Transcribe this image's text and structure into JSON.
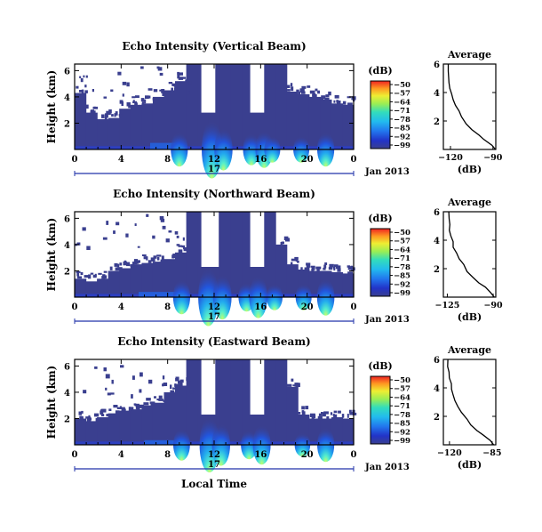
{
  "figure": {
    "date_label": "Jan 2013",
    "xlabel": "Local Time"
  },
  "chart_data": [
    {
      "type": "heatmap",
      "title": "Echo Intensity (Vertical Beam)",
      "ylabel": "Height (km)",
      "xlim": [
        0,
        24
      ],
      "ylim": [
        0,
        6.5
      ],
      "x_ticks": [
        "0",
        "4",
        "8",
        "12",
        "16",
        "20",
        "0"
      ],
      "x_tick_values": [
        0,
        4,
        8,
        12,
        16,
        20,
        24
      ],
      "y_ticks": [
        "2",
        "4",
        "6"
      ],
      "day_label": "17",
      "colorbar": {
        "unit": "(dB)",
        "ticks": [
          "-50",
          "-57",
          "-64",
          "-71",
          "-78",
          "-85",
          "-92",
          "-99"
        ],
        "range": [
          -99,
          -50
        ]
      },
      "echo_top_km": [
        4.3,
        2.8,
        2.3,
        2.4,
        3.1,
        3.4,
        3.5,
        4.0,
        4.5,
        5.2,
        6.5,
        6.5,
        6.5,
        6.5,
        6.5,
        6.5,
        6.5,
        6.5,
        6.5,
        4.4,
        4.2,
        4.0,
        3.8,
        3.5,
        3.4
      ],
      "clear_gaps": [
        [
          0,
          1.2,
          2.0,
          3.3
        ],
        [
          0,
          1.2,
          3.4,
          4.8
        ]
      ],
      "clutter_band": {
        "x": [
          6.5,
          9.0
        ],
        "top_km": 1.0
      },
      "plumes": [
        [
          9.0,
          1.3
        ],
        [
          11.8,
          2.2
        ],
        [
          12.8,
          1.6
        ],
        [
          15.2,
          1.2
        ],
        [
          16.3,
          1.4
        ],
        [
          17.0,
          1.0
        ],
        [
          19.5,
          1.0
        ],
        [
          21.6,
          1.3
        ]
      ],
      "profile": {
        "title": "Average",
        "xlabel": "(dB)",
        "xlim": [
          -125,
          -88
        ],
        "x_ticks": [
          "-120",
          "-90"
        ],
        "x_tick_values": [
          -120,
          -90
        ],
        "y_ticks": [
          "2",
          "4",
          "6"
        ],
        "ylim": [
          0,
          6
        ],
        "x": [
          -88,
          -91,
          -96,
          -100,
          -105,
          -109,
          -112,
          -114,
          -116,
          -118,
          -119,
          -120,
          -121,
          -121,
          -122,
          -122
        ],
        "y": [
          0.0,
          0.3,
          0.7,
          1.0,
          1.4,
          1.8,
          2.3,
          2.7,
          3.1,
          3.5,
          3.9,
          4.3,
          4.7,
          5.1,
          5.5,
          6.0
        ]
      }
    },
    {
      "type": "heatmap",
      "title": "Echo Intensity (Northward Beam)",
      "ylabel": "Height (km)",
      "xlim": [
        0,
        24
      ],
      "ylim": [
        0,
        6.5
      ],
      "x_ticks": [
        "0",
        "4",
        "8",
        "12",
        "16",
        "20",
        "0"
      ],
      "x_tick_values": [
        0,
        4,
        8,
        12,
        16,
        20,
        24
      ],
      "y_ticks": [
        "2",
        "4",
        "6"
      ],
      "day_label": "17",
      "colorbar": {
        "unit": "(dB)",
        "ticks": [
          "-50",
          "-57",
          "-64",
          "-71",
          "-78",
          "-85",
          "-92",
          "-99"
        ],
        "range": [
          -99,
          -50
        ]
      },
      "echo_top_km": [
        1.4,
        1.2,
        1.4,
        2.0,
        2.2,
        2.5,
        2.6,
        2.7,
        2.9,
        3.4,
        6.5,
        6.5,
        6.5,
        6.5,
        6.5,
        6.5,
        6.5,
        6.5,
        4.0,
        2.5,
        2.1,
        2.0,
        2.0,
        1.9,
        1.8
      ],
      "clear_gaps": [
        [
          0,
          0.8,
          2.5,
          3.4
        ],
        [
          0,
          0.8,
          4.2,
          5.5
        ],
        [
          0,
          0.5,
          5.5,
          6.2
        ]
      ],
      "clutter_band": {
        "x": [
          5.5,
          9.0
        ],
        "top_km": 0.8
      },
      "plumes": [
        [
          9.2,
          1.3
        ],
        [
          11.5,
          2.2
        ],
        [
          12.7,
          1.7
        ],
        [
          14.8,
          1.1
        ],
        [
          15.8,
          1.6
        ],
        [
          17.2,
          1.0
        ],
        [
          19.7,
          1.0
        ],
        [
          21.6,
          1.4
        ]
      ],
      "profile": {
        "title": "Average",
        "xlabel": "(dB)",
        "xlim": [
          -128,
          -88
        ],
        "x_ticks": [
          "-125",
          "-90"
        ],
        "x_tick_values": [
          -125,
          -90
        ],
        "y_ticks": [
          "2",
          "4",
          "6"
        ],
        "ylim": [
          0,
          6
        ],
        "x": [
          -89,
          -92,
          -96,
          -101,
          -106,
          -110,
          -113,
          -116,
          -118,
          -120,
          -121,
          -122,
          -123,
          -123,
          -124,
          -124
        ],
        "y": [
          0.0,
          0.3,
          0.7,
          1.0,
          1.4,
          1.8,
          2.3,
          2.7,
          3.1,
          3.5,
          3.9,
          4.3,
          4.7,
          5.1,
          5.5,
          6.0
        ]
      }
    },
    {
      "type": "heatmap",
      "title": "Echo Intensity (Eastward Beam)",
      "ylabel": "Height (km)",
      "xlim": [
        0,
        24
      ],
      "ylim": [
        0,
        6.5
      ],
      "x_ticks": [
        "0",
        "4",
        "8",
        "12",
        "16",
        "20",
        "0"
      ],
      "x_tick_values": [
        0,
        4,
        8,
        12,
        16,
        20,
        24
      ],
      "y_ticks": [
        "2",
        "4",
        "6"
      ],
      "day_label": "17",
      "colorbar": {
        "unit": "(dB)",
        "ticks": [
          "-50",
          "-57",
          "-64",
          "-71",
          "-78",
          "-85",
          "-92",
          "-99"
        ],
        "range": [
          -99,
          -50
        ]
      },
      "echo_top_km": [
        2.0,
        1.8,
        2.1,
        2.4,
        2.6,
        2.7,
        3.0,
        3.2,
        4.0,
        4.5,
        6.5,
        6.5,
        6.5,
        6.5,
        6.5,
        6.5,
        6.5,
        6.5,
        6.5,
        4.4,
        2.3,
        2.0,
        2.0,
        2.1,
        2.0
      ],
      "clear_gaps": [
        [
          0,
          0.5,
          3.6,
          5.0
        ],
        [
          0,
          0.7,
          5.6,
          6.4
        ],
        [
          0,
          0.5,
          3.0,
          3.3
        ]
      ],
      "clutter_band": {
        "x": [
          6.0,
          9.0
        ],
        "top_km": 0.7
      },
      "plumes": [
        [
          9.2,
          1.2
        ],
        [
          11.6,
          2.1
        ],
        [
          12.6,
          1.6
        ],
        [
          15.0,
          1.1
        ],
        [
          16.1,
          1.5
        ],
        [
          19.6,
          0.9
        ],
        [
          21.6,
          1.3
        ]
      ],
      "profile": {
        "title": "Average",
        "xlabel": "(dB)",
        "xlim": [
          -125,
          -82
        ],
        "x_ticks": [
          "-120",
          "-85"
        ],
        "x_tick_values": [
          -120,
          -85
        ],
        "y_ticks": [
          "2",
          "4",
          "6"
        ],
        "ylim": [
          0,
          6
        ],
        "x": [
          -84,
          -87,
          -92,
          -97,
          -102,
          -106,
          -110,
          -113,
          -115,
          -117,
          -118,
          -119,
          -120,
          -120,
          -121,
          -121
        ],
        "y": [
          0.0,
          0.3,
          0.7,
          1.0,
          1.4,
          1.8,
          2.3,
          2.7,
          3.1,
          3.5,
          3.9,
          4.3,
          4.7,
          5.1,
          5.5,
          6.0
        ]
      }
    }
  ]
}
